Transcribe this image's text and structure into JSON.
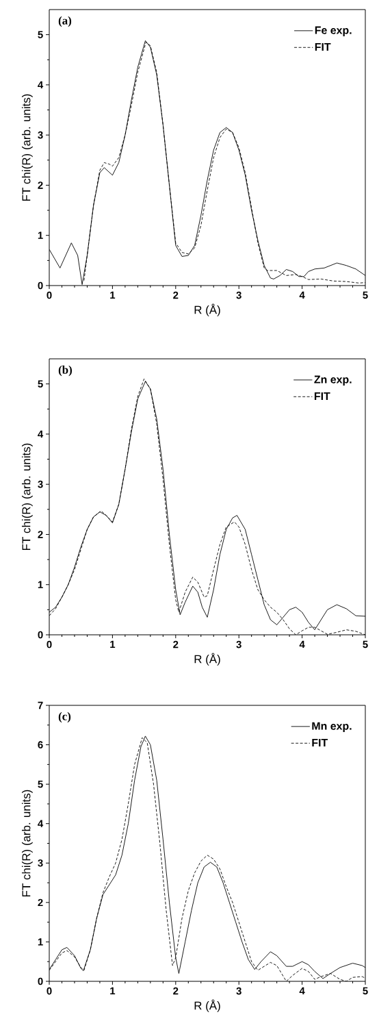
{
  "chart_data": [
    {
      "type": "line",
      "xlabel": "R (Å)",
      "ylabel": "FT chi(R) (arb. units)",
      "annotations": [
        "(a)"
      ],
      "xlim": [
        0,
        5
      ],
      "ylim": [
        0,
        5.5
      ],
      "xticks": [
        0,
        1,
        2,
        3,
        4,
        5
      ],
      "yticks": [
        0,
        1,
        2,
        3,
        4,
        5
      ],
      "legend": "top right",
      "series": [
        {
          "name": "Fe exp.",
          "color": "#000000",
          "line_style": "solid",
          "x": [
            0,
            0.17,
            0.35,
            0.45,
            0.52,
            0.6,
            0.7,
            0.8,
            0.87,
            0.93,
            1.0,
            1.1,
            1.2,
            1.3,
            1.4,
            1.52,
            1.6,
            1.7,
            1.8,
            1.9,
            2.0,
            2.1,
            2.2,
            2.3,
            2.4,
            2.5,
            2.6,
            2.7,
            2.8,
            2.9,
            3.0,
            3.1,
            3.2,
            3.3,
            3.4,
            3.5,
            3.55,
            3.65,
            3.75,
            3.85,
            3.95,
            4.03,
            4.1,
            4.2,
            4.35,
            4.55,
            4.7,
            4.85,
            5.0
          ],
          "values": [
            0.72,
            0.35,
            0.85,
            0.6,
            0.02,
            0.6,
            1.6,
            2.25,
            2.35,
            2.28,
            2.2,
            2.45,
            3.0,
            3.7,
            4.35,
            4.88,
            4.75,
            4.2,
            3.2,
            2.0,
            0.8,
            0.58,
            0.6,
            0.8,
            1.4,
            2.1,
            2.7,
            3.05,
            3.15,
            3.05,
            2.7,
            2.2,
            1.5,
            0.9,
            0.4,
            0.15,
            0.13,
            0.2,
            0.32,
            0.28,
            0.18,
            0.18,
            0.28,
            0.33,
            0.35,
            0.45,
            0.4,
            0.33,
            0.2
          ]
        },
        {
          "name": "FIT",
          "color": "#000000",
          "line_style": "dashed",
          "x": [
            0.55,
            0.7,
            0.8,
            0.87,
            0.95,
            1.0,
            1.1,
            1.2,
            1.3,
            1.4,
            1.53,
            1.6,
            1.7,
            1.8,
            1.9,
            2.0,
            2.1,
            2.2,
            2.3,
            2.4,
            2.5,
            2.6,
            2.7,
            2.8,
            2.9,
            3.0,
            3.1,
            3.2,
            3.3,
            3.4,
            3.45,
            3.6,
            3.75,
            3.9,
            4.0,
            4.1,
            4.3,
            4.5,
            4.7,
            4.9,
            5.0
          ],
          "values": [
            0.1,
            1.6,
            2.3,
            2.45,
            2.42,
            2.38,
            2.55,
            3.0,
            3.6,
            4.25,
            4.85,
            4.78,
            4.25,
            3.2,
            2.0,
            0.85,
            0.66,
            0.63,
            0.75,
            1.2,
            1.9,
            2.55,
            2.95,
            3.12,
            3.05,
            2.75,
            2.25,
            1.55,
            0.85,
            0.35,
            0.3,
            0.3,
            0.2,
            0.22,
            0.18,
            0.12,
            0.13,
            0.09,
            0.08,
            0.05,
            0.06
          ]
        }
      ]
    },
    {
      "type": "line",
      "xlabel": "R (Å)",
      "ylabel": "FT chi(R) (arb. units)",
      "annotations": [
        "(b)"
      ],
      "xlim": [
        0,
        5
      ],
      "ylim": [
        0,
        5.5
      ],
      "xticks": [
        0,
        1,
        2,
        3,
        4,
        5
      ],
      "yticks": [
        0,
        1,
        2,
        3,
        4,
        5
      ],
      "legend": "top right",
      "series": [
        {
          "name": "Zn exp.",
          "color": "#000000",
          "line_style": "solid",
          "x": [
            0,
            0.1,
            0.2,
            0.3,
            0.4,
            0.5,
            0.6,
            0.7,
            0.8,
            0.9,
            1.0,
            1.1,
            1.2,
            1.3,
            1.4,
            1.52,
            1.6,
            1.7,
            1.8,
            1.9,
            2.0,
            2.07,
            2.15,
            2.27,
            2.35,
            2.42,
            2.5,
            2.6,
            2.7,
            2.8,
            2.9,
            2.97,
            3.1,
            3.2,
            3.3,
            3.4,
            3.5,
            3.6,
            3.7,
            3.8,
            3.9,
            4.0,
            4.1,
            4.2,
            4.3,
            4.4,
            4.55,
            4.7,
            4.85,
            5.0
          ],
          "values": [
            0.45,
            0.55,
            0.75,
            1.0,
            1.35,
            1.75,
            2.1,
            2.35,
            2.45,
            2.38,
            2.23,
            2.6,
            3.3,
            4.05,
            4.7,
            5.05,
            4.9,
            4.3,
            3.3,
            2.0,
            0.9,
            0.4,
            0.65,
            0.97,
            0.85,
            0.55,
            0.35,
            0.9,
            1.6,
            2.1,
            2.33,
            2.38,
            2.1,
            1.6,
            1.1,
            0.6,
            0.3,
            0.2,
            0.35,
            0.5,
            0.55,
            0.45,
            0.25,
            0.1,
            0.3,
            0.5,
            0.6,
            0.52,
            0.38,
            0.37
          ]
        },
        {
          "name": "FIT",
          "color": "#000000",
          "line_style": "dashed",
          "x": [
            0,
            0.1,
            0.2,
            0.3,
            0.4,
            0.5,
            0.6,
            0.7,
            0.82,
            0.9,
            1.0,
            1.1,
            1.2,
            1.3,
            1.4,
            1.5,
            1.6,
            1.7,
            1.8,
            1.9,
            2.0,
            2.05,
            2.15,
            2.27,
            2.35,
            2.45,
            2.5,
            2.6,
            2.7,
            2.8,
            2.93,
            3.0,
            3.1,
            3.2,
            3.3,
            3.4,
            3.5,
            3.6,
            3.7,
            3.8,
            3.9,
            4.0,
            4.1,
            4.2,
            4.3,
            4.4,
            4.55,
            4.7,
            4.85,
            5.0
          ],
          "values": [
            0.38,
            0.52,
            0.75,
            1.0,
            1.3,
            1.7,
            2.1,
            2.35,
            2.47,
            2.38,
            2.25,
            2.6,
            3.3,
            4.1,
            4.75,
            5.1,
            4.9,
            4.2,
            3.1,
            1.8,
            0.7,
            0.45,
            0.85,
            1.15,
            1.05,
            0.75,
            0.78,
            1.3,
            1.8,
            2.15,
            2.25,
            2.15,
            1.8,
            1.3,
            0.9,
            0.7,
            0.55,
            0.45,
            0.3,
            0.12,
            0.0,
            0.08,
            0.15,
            0.15,
            0.08,
            0.01,
            0.05,
            0.1,
            0.07,
            0.0
          ]
        }
      ]
    },
    {
      "type": "line",
      "xlabel": "R (Å)",
      "ylabel": "FT chi(R) (arb. units)",
      "annotations": [
        "(c)"
      ],
      "xlim": [
        0,
        5
      ],
      "ylim": [
        0,
        7
      ],
      "xticks": [
        0,
        1,
        2,
        3,
        4,
        5
      ],
      "yticks": [
        0,
        1,
        2,
        3,
        4,
        5,
        6,
        7
      ],
      "legend": "top right",
      "series": [
        {
          "name": "Mn exp.",
          "color": "#000000",
          "line_style": "solid",
          "x": [
            0,
            0.1,
            0.2,
            0.28,
            0.4,
            0.5,
            0.54,
            0.65,
            0.75,
            0.85,
            0.95,
            1.05,
            1.15,
            1.25,
            1.35,
            1.45,
            1.52,
            1.6,
            1.7,
            1.8,
            1.9,
            2.0,
            2.05,
            2.15,
            2.25,
            2.35,
            2.45,
            2.55,
            2.65,
            2.75,
            2.85,
            2.95,
            3.05,
            3.15,
            3.25,
            3.35,
            3.5,
            3.6,
            3.75,
            3.85,
            4.0,
            4.1,
            4.2,
            4.33,
            4.45,
            4.6,
            4.8,
            4.95,
            5.0
          ],
          "values": [
            0.3,
            0.55,
            0.8,
            0.86,
            0.65,
            0.33,
            0.27,
            0.8,
            1.6,
            2.2,
            2.45,
            2.7,
            3.2,
            4.0,
            5.1,
            5.95,
            6.22,
            6.0,
            5.1,
            3.6,
            2.0,
            0.6,
            0.2,
            1.0,
            1.8,
            2.5,
            2.9,
            3.02,
            2.9,
            2.5,
            2.0,
            1.5,
            1.0,
            0.55,
            0.3,
            0.5,
            0.75,
            0.65,
            0.38,
            0.38,
            0.5,
            0.42,
            0.25,
            0.07,
            0.2,
            0.35,
            0.46,
            0.4,
            0.35
          ]
        },
        {
          "name": "FIT",
          "color": "#000000",
          "line_style": "dashed",
          "x": [
            0,
            0.1,
            0.2,
            0.28,
            0.4,
            0.5,
            0.55,
            0.65,
            0.75,
            0.85,
            0.95,
            1.05,
            1.15,
            1.25,
            1.35,
            1.47,
            1.55,
            1.65,
            1.75,
            1.85,
            1.95,
            2.0,
            2.1,
            2.2,
            2.3,
            2.4,
            2.5,
            2.6,
            2.7,
            2.8,
            2.9,
            3.0,
            3.1,
            3.2,
            3.3,
            3.5,
            3.6,
            3.75,
            3.85,
            4.0,
            4.1,
            4.2,
            4.3,
            4.45,
            4.6,
            4.7,
            4.8,
            4.95,
            5.0
          ],
          "values": [
            0.28,
            0.5,
            0.72,
            0.78,
            0.62,
            0.35,
            0.28,
            0.8,
            1.6,
            2.25,
            2.65,
            3.0,
            3.6,
            4.5,
            5.5,
            6.18,
            6.05,
            5.0,
            3.5,
            1.8,
            0.4,
            0.6,
            1.6,
            2.3,
            2.75,
            3.05,
            3.2,
            3.1,
            2.85,
            2.4,
            2.0,
            1.5,
            1.0,
            0.5,
            0.28,
            0.48,
            0.4,
            0.0,
            0.15,
            0.33,
            0.25,
            0.05,
            0.12,
            0.2,
            0.05,
            0.0,
            0.1,
            0.12,
            0.08
          ]
        }
      ]
    }
  ]
}
